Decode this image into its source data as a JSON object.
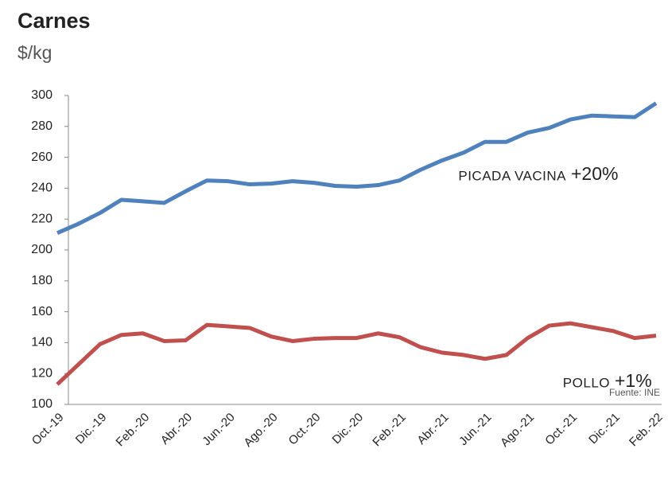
{
  "chart_data": {
    "type": "line",
    "title": "Carnes",
    "subtitle": "$/kg",
    "categories": [
      "Oct.-19",
      null,
      "Dic.-19",
      null,
      "Feb.-20",
      null,
      "Abr.-20",
      null,
      "Jun.-20",
      null,
      "Ago.-20",
      null,
      "Oct.-20",
      null,
      "Dic.-20",
      null,
      "Feb.-21",
      null,
      "Abr.-21",
      null,
      "Jun.-21",
      null,
      "Ago.-21",
      null,
      "Oct.-21",
      null,
      "Dic.-21",
      null,
      "Feb.-22"
    ],
    "series": [
      {
        "name": "PICADA VACINA",
        "color": "#4f81bd",
        "values": [
          211,
          217,
          224,
          232.5,
          231.5,
          230.5,
          238,
          245,
          244.5,
          242.5,
          243,
          244.5,
          243.5,
          241.5,
          241,
          242,
          245,
          252,
          258,
          263,
          270,
          270,
          276,
          279,
          284.5,
          287,
          286.5,
          286,
          295
        ]
      },
      {
        "name": "POLLO",
        "color": "#c0504d",
        "values": [
          113,
          126,
          139,
          145,
          146,
          141,
          141.5,
          151.5,
          150.5,
          149.5,
          144,
          141,
          142.5,
          143,
          143,
          146,
          143.5,
          137,
          133.5,
          132,
          129.5,
          132,
          143,
          151,
          152.5,
          150,
          147.5,
          143,
          144.5
        ]
      }
    ],
    "annotations": [
      "+20%",
      "+1%",
      "Fuente: INE"
    ],
    "ylim": [
      100,
      300
    ],
    "yticks": [
      100,
      120,
      140,
      160,
      180,
      200,
      220,
      240,
      260,
      280,
      300
    ],
    "grid": false
  }
}
